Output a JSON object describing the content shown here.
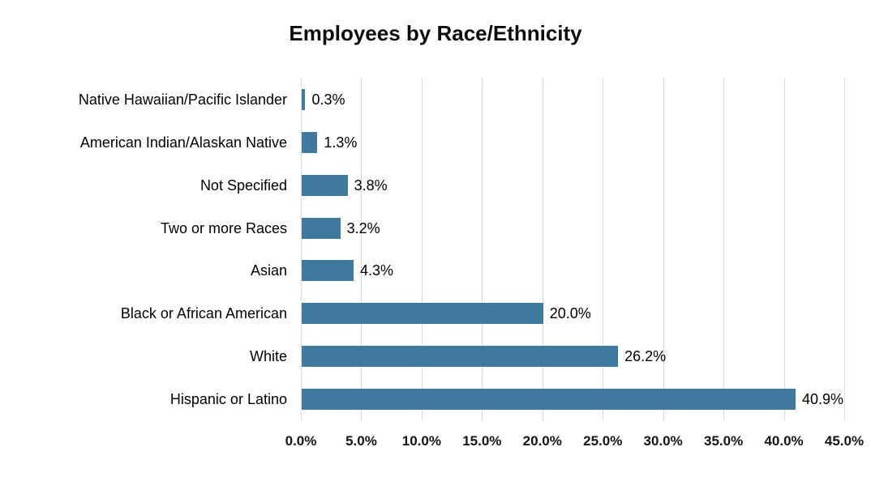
{
  "title": "Employees by Race/Ethnicity",
  "colors": {
    "bar": "#40799E",
    "gridline": "#D9D9D9",
    "text": "#000000",
    "background": "#FFFFFF"
  },
  "chart_data": {
    "type": "bar",
    "orientation": "horizontal",
    "title": "Employees by Race/Ethnicity",
    "categories": [
      "Native Hawaiian/Pacific Islander",
      "American Indian/Alaskan Native",
      "Not Specified",
      "Two or more Races",
      "Asian",
      "Black or African American",
      "White",
      "Hispanic or Latino"
    ],
    "values": [
      0.3,
      1.3,
      3.8,
      3.2,
      4.3,
      20.0,
      26.2,
      40.9
    ],
    "data_labels": [
      "0.3%",
      "1.3%",
      "3.8%",
      "3.2%",
      "4.3%",
      "20.0%",
      "26.2%",
      "40.9%"
    ],
    "x_ticks": [
      "0.0%",
      "5.0%",
      "10.0%",
      "15.0%",
      "20.0%",
      "25.0%",
      "30.0%",
      "35.0%",
      "40.0%",
      "45.0%"
    ],
    "x_tick_values": [
      0,
      5,
      10,
      15,
      20,
      25,
      30,
      35,
      40,
      45
    ],
    "xlim": [
      0,
      45
    ],
    "xlabel": "",
    "ylabel": "",
    "grid": "vertical",
    "legend": "none"
  }
}
